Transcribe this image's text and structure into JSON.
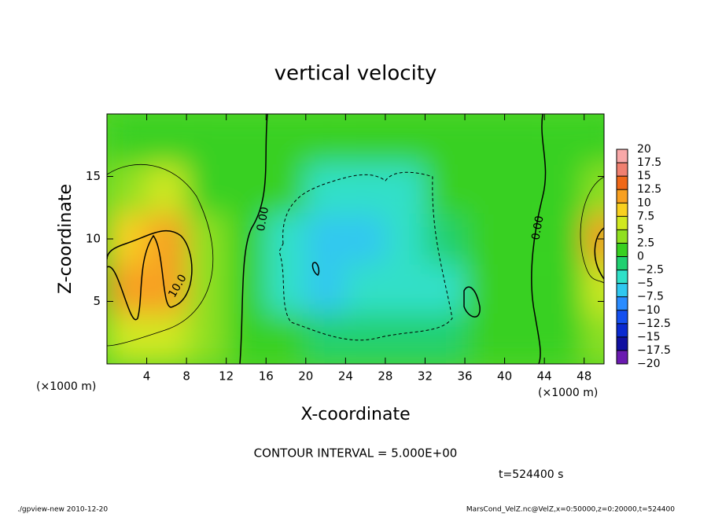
{
  "chart_data": {
    "type": "contour",
    "title": "vertical velocity",
    "x_label": "X-coordinate",
    "y_label": "Z-coordinate",
    "x_unit": "(×1000 m)",
    "y_unit": "(×1000 m)",
    "xlim": [
      0,
      50
    ],
    "ylim": [
      0,
      20
    ],
    "xticks": [
      4,
      8,
      12,
      16,
      20,
      24,
      28,
      32,
      36,
      40,
      44,
      48
    ],
    "yticks": [
      5,
      10,
      15
    ],
    "field": {
      "x": [
        2,
        6,
        10,
        14,
        18,
        22,
        26,
        30,
        34,
        38,
        42,
        46,
        50
      ],
      "z": [
        2,
        6,
        10,
        14,
        18
      ],
      "values": [
        [
          5,
          5,
          3,
          1,
          0,
          -2,
          -2,
          -2,
          -1,
          1,
          1,
          1,
          3
        ],
        [
          12,
          10,
          4,
          1,
          -4,
          -7,
          -5,
          -5,
          -3,
          0,
          1,
          2,
          6
        ],
        [
          8,
          11,
          4,
          1,
          -3,
          -6,
          -6,
          -5,
          -2,
          0,
          1,
          2,
          11
        ],
        [
          4,
          5,
          2,
          1,
          0,
          -4,
          -4,
          -3,
          0,
          1,
          1,
          1,
          4
        ],
        [
          1,
          1,
          1,
          1,
          1,
          1,
          1,
          1,
          1,
          1,
          1,
          1,
          1
        ]
      ]
    },
    "colorbar": {
      "levels": [
        {
          "value": -20,
          "label": "−20"
        },
        {
          "value": -17.5,
          "label": "−17.5"
        },
        {
          "value": -15,
          "label": "−15"
        },
        {
          "value": -12.5,
          "label": "−12.5"
        },
        {
          "value": -10,
          "label": "−10"
        },
        {
          "value": -7.5,
          "label": "−7.5"
        },
        {
          "value": -5,
          "label": "−5"
        },
        {
          "value": -2.5,
          "label": "−2.5"
        },
        0,
        2.5,
        5,
        7.5,
        10,
        12.5,
        15,
        17.5,
        20
      ],
      "colors": [
        "#6a1ab0",
        "#1010a0",
        "#0a2ad0",
        "#1450f0",
        "#2a8cff",
        "#30c8f0",
        "#30e0c8",
        "#20d070",
        "#38d020",
        "#90e020",
        "#d0e820",
        "#f8d020",
        "#f8a020",
        "#f06818",
        "#f08070",
        "#f8a8a8"
      ]
    },
    "annotations": [
      "0.00",
      "0.00",
      "10.0"
    ],
    "contour_interval": "CONTOUR INTERVAL = 5.000E+00",
    "time_label": "t=524400 s",
    "footer_left": "./gpview-new  2010-12-20",
    "footer_right": "MarsCond_VelZ.nc@VelZ,x=0:50000,z=0:20000,t=524400"
  }
}
